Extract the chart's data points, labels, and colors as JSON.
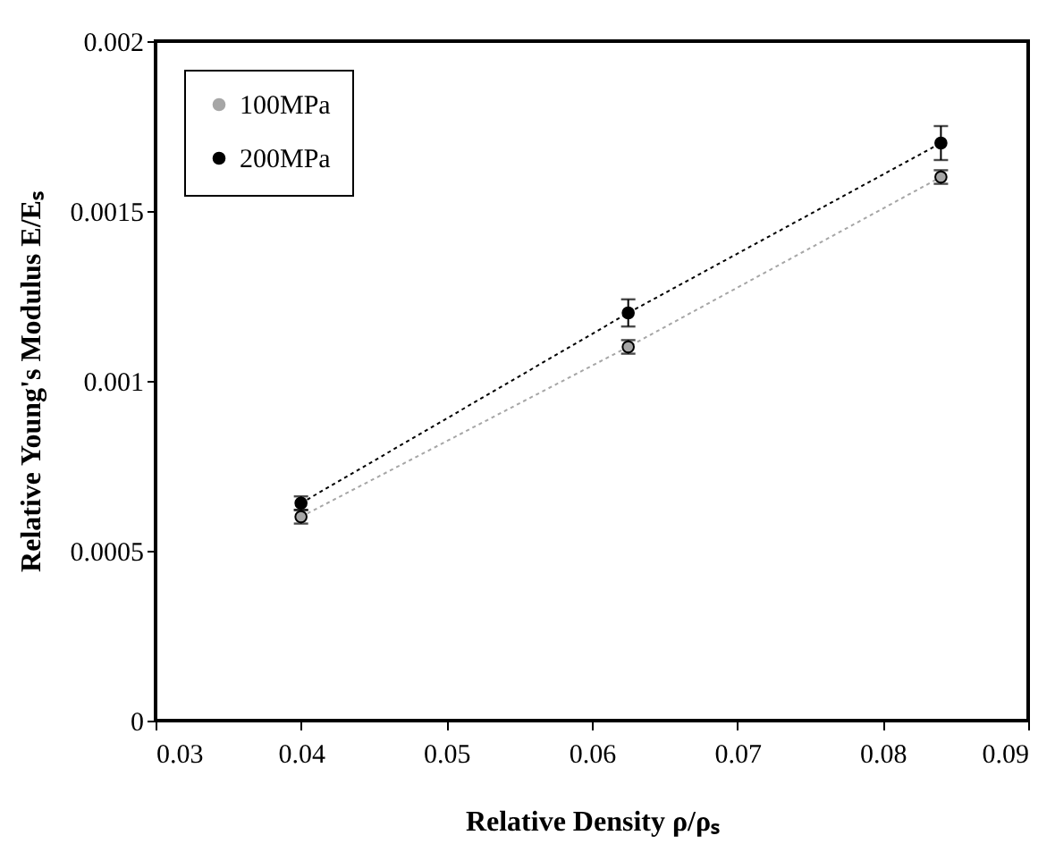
{
  "chart_data": {
    "type": "line",
    "xlabel": "Relative Density ρ/ρₛ",
    "ylabel": "Relative Young's Modulus E/Eₛ",
    "x": [
      0.04,
      0.0625,
      0.084
    ],
    "series": [
      {
        "name": "100MPa",
        "color": "#a6a6a6",
        "values": [
          0.0006,
          0.0011,
          0.0016
        ],
        "errors": [
          2e-05,
          2e-05,
          2e-05
        ]
      },
      {
        "name": "200MPa",
        "color": "#000000",
        "values": [
          0.00064,
          0.0012,
          0.0017
        ],
        "errors": [
          2e-05,
          4e-05,
          5e-05
        ]
      }
    ],
    "xlim": [
      0.03,
      0.09
    ],
    "xticks": [
      0.03,
      0.04,
      0.05,
      0.06,
      0.07,
      0.08,
      0.09
    ],
    "ylim": [
      0,
      0.002
    ],
    "yticks": [
      0,
      0.0005,
      0.001,
      0.0015,
      0.002
    ],
    "marker": "circle",
    "line_style": "dotted",
    "legend": "top left",
    "grid": false
  }
}
